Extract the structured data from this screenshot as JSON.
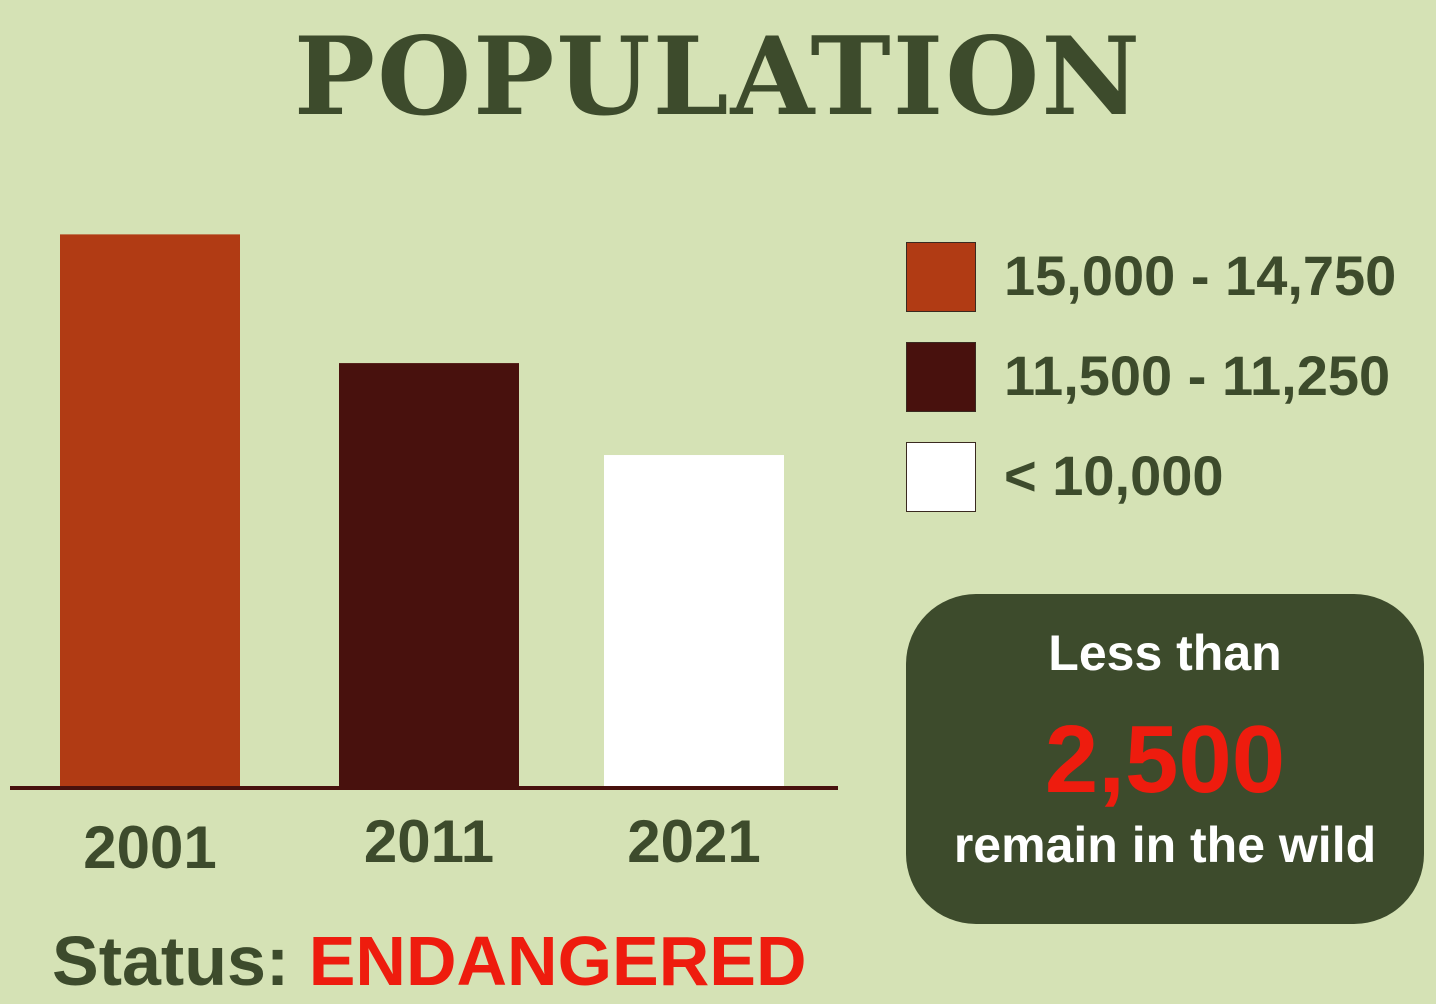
{
  "chart_data": {
    "type": "bar",
    "title": "POPULATION",
    "categories": [
      "2001",
      "2011",
      "2021"
    ],
    "values": [
      15000,
      11500,
      9000
    ],
    "colors": [
      "#b13b14",
      "#48110d",
      "#ffffff"
    ],
    "ylim": [
      0,
      15500
    ],
    "grid": false,
    "legend": {
      "placement": "right",
      "entries": [
        {
          "label": "15,000 - 14,750",
          "color": "#b13b14"
        },
        {
          "label": "11,500 - 11,250",
          "color": "#48110d"
        },
        {
          "label": "< 10,000",
          "color": "#ffffff"
        }
      ]
    },
    "axis_color": "#48110d",
    "tick_color": "#3d4b2c"
  },
  "callout": {
    "pre": "Less than",
    "number": "2,500",
    "post": "remain in the wild"
  },
  "status": {
    "label": "Status:",
    "value": "ENDANGERED"
  }
}
